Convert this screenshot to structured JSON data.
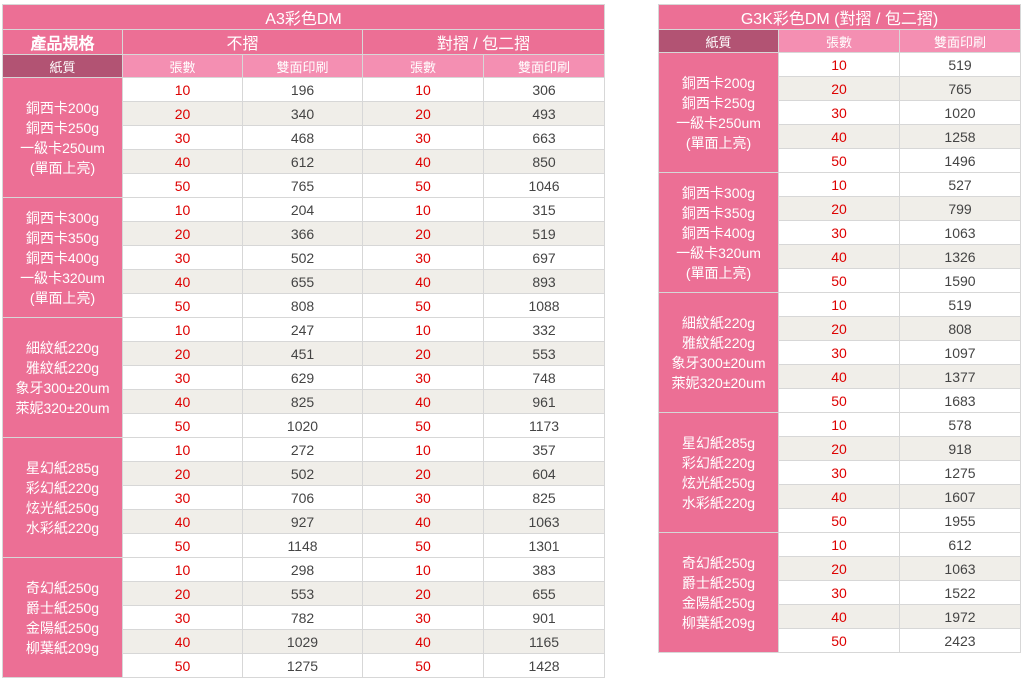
{
  "a3": {
    "title": "A3彩色DM",
    "product_label": "產品規格",
    "col_unfolded": "不摺",
    "col_folded": "對摺 / 包二摺",
    "paper_label": "紙質",
    "sheets_label": "張數",
    "double_label": "雙面印刷",
    "groups": [
      {
        "papers": [
          "銅西卡200g",
          "銅西卡250g",
          "一級卡250um",
          "(單面上亮)"
        ],
        "rows": [
          [
            "10",
            "196",
            "10",
            "306"
          ],
          [
            "20",
            "340",
            "20",
            "493"
          ],
          [
            "30",
            "468",
            "30",
            "663"
          ],
          [
            "40",
            "612",
            "40",
            "850"
          ],
          [
            "50",
            "765",
            "50",
            "1046"
          ]
        ]
      },
      {
        "papers": [
          "銅西卡300g",
          "銅西卡350g",
          "銅西卡400g",
          "一級卡320um",
          "(單面上亮)"
        ],
        "rows": [
          [
            "10",
            "204",
            "10",
            "315"
          ],
          [
            "20",
            "366",
            "20",
            "519"
          ],
          [
            "30",
            "502",
            "30",
            "697"
          ],
          [
            "40",
            "655",
            "40",
            "893"
          ],
          [
            "50",
            "808",
            "50",
            "1088"
          ]
        ]
      },
      {
        "papers": [
          "細紋紙220g",
          "雅紋紙220g",
          "象牙300±20um",
          "萊妮320±20um"
        ],
        "rows": [
          [
            "10",
            "247",
            "10",
            "332"
          ],
          [
            "20",
            "451",
            "20",
            "553"
          ],
          [
            "30",
            "629",
            "30",
            "748"
          ],
          [
            "40",
            "825",
            "40",
            "961"
          ],
          [
            "50",
            "1020",
            "50",
            "1173"
          ]
        ]
      },
      {
        "papers": [
          "星幻紙285g",
          "彩幻紙220g",
          "炫光紙250g",
          "水彩紙220g"
        ],
        "rows": [
          [
            "10",
            "272",
            "10",
            "357"
          ],
          [
            "20",
            "502",
            "20",
            "604"
          ],
          [
            "30",
            "706",
            "30",
            "825"
          ],
          [
            "40",
            "927",
            "40",
            "1063"
          ],
          [
            "50",
            "1148",
            "50",
            "1301"
          ]
        ]
      },
      {
        "papers": [
          "奇幻紙250g",
          "爵士紙250g",
          "金陽紙250g",
          "柳葉紙209g"
        ],
        "rows": [
          [
            "10",
            "298",
            "10",
            "383"
          ],
          [
            "20",
            "553",
            "20",
            "655"
          ],
          [
            "30",
            "782",
            "30",
            "901"
          ],
          [
            "40",
            "1029",
            "40",
            "1165"
          ],
          [
            "50",
            "1275",
            "50",
            "1428"
          ]
        ]
      }
    ]
  },
  "g3k": {
    "title": "G3K彩色DM (對摺 / 包二摺)",
    "paper_label": "紙質",
    "sheets_label": "張數",
    "double_label": "雙面印刷",
    "groups": [
      {
        "papers": [
          "銅西卡200g",
          "銅西卡250g",
          "一級卡250um",
          "(單面上亮)"
        ],
        "rows": [
          [
            "10",
            "519"
          ],
          [
            "20",
            "765"
          ],
          [
            "30",
            "1020"
          ],
          [
            "40",
            "1258"
          ],
          [
            "50",
            "1496"
          ]
        ]
      },
      {
        "papers": [
          "銅西卡300g",
          "銅西卡350g",
          "銅西卡400g",
          "一級卡320um",
          "(單面上亮)"
        ],
        "rows": [
          [
            "10",
            "527"
          ],
          [
            "20",
            "799"
          ],
          [
            "30",
            "1063"
          ],
          [
            "40",
            "1326"
          ],
          [
            "50",
            "1590"
          ]
        ]
      },
      {
        "papers": [
          "細紋紙220g",
          "雅紋紙220g",
          "象牙300±20um",
          "萊妮320±20um"
        ],
        "rows": [
          [
            "10",
            "519"
          ],
          [
            "20",
            "808"
          ],
          [
            "30",
            "1097"
          ],
          [
            "40",
            "1377"
          ],
          [
            "50",
            "1683"
          ]
        ]
      },
      {
        "papers": [
          "星幻紙285g",
          "彩幻紙220g",
          "炫光紙250g",
          "水彩紙220g"
        ],
        "rows": [
          [
            "10",
            "578"
          ],
          [
            "20",
            "918"
          ],
          [
            "30",
            "1275"
          ],
          [
            "40",
            "1607"
          ],
          [
            "50",
            "1955"
          ]
        ]
      },
      {
        "papers": [
          "奇幻紙250g",
          "爵士紙250g",
          "金陽紙250g",
          "柳葉紙209g"
        ],
        "rows": [
          [
            "10",
            "612"
          ],
          [
            "20",
            "1063"
          ],
          [
            "30",
            "1522"
          ],
          [
            "40",
            "1972"
          ],
          [
            "50",
            "2423"
          ]
        ]
      }
    ]
  }
}
